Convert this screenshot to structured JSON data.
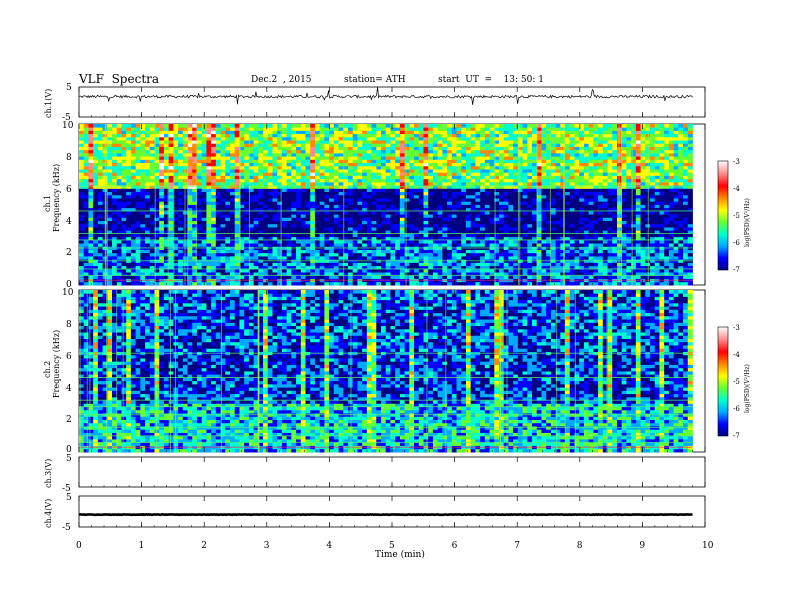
{
  "header": {
    "title": "VLF  Spectra",
    "date": "Dec.2  , 2015",
    "station": "station= ATH",
    "start": "start  UT  =    13: 50: 1"
  },
  "chart_data": [
    {
      "type": "line",
      "panel": "ch1-waveform",
      "ylabel": "ch.1(V)",
      "ylim": [
        -5,
        5
      ],
      "yticks": [
        "5",
        "-5"
      ],
      "baseline_value": 1.8
    },
    {
      "type": "heatmap",
      "panel": "ch1-spectrogram",
      "ylabel_line1": "ch.1",
      "ylabel_line2": "Frequency  (kHz)",
      "ylim": [
        0,
        10
      ],
      "yticks": [
        "10",
        "8",
        "6",
        "4",
        "2",
        "0"
      ],
      "colorbar": {
        "label": "log(PSD)(V²/Hz)",
        "range": [
          -7,
          -3
        ],
        "ticks": [
          "-3",
          "-4",
          "-5",
          "-6",
          "-7"
        ],
        "colors": [
          "#000080",
          "#0000ff",
          "#00aaff",
          "#00ffcc",
          "#66ff33",
          "#ffff00",
          "#ff8800",
          "#ff0000",
          "#ff8888",
          "#ffffff"
        ]
      },
      "data_end_min": 9.8,
      "levels": {
        "above_6kHz": -5.2,
        "between_3_and_6kHz": -6.8,
        "below_3kHz": -6.2
      }
    },
    {
      "type": "heatmap",
      "panel": "ch2-spectrogram",
      "ylabel_line1": "ch.2",
      "ylabel_line2": "Frequency  (kHz)",
      "ylim": [
        0,
        10
      ],
      "yticks": [
        "10",
        "8",
        "6",
        "4",
        "2",
        "0"
      ],
      "colorbar": {
        "label": "log(PSD)(V²/Hz)",
        "range": [
          -7,
          -3
        ],
        "ticks": [
          "-3",
          "-4",
          "-5",
          "-6",
          "-7"
        ],
        "colors": [
          "#000080",
          "#0000ff",
          "#00aaff",
          "#00ffcc",
          "#66ff33",
          "#ffff00",
          "#ff8800",
          "#ff0000",
          "#ff8888",
          "#ffffff"
        ]
      },
      "data_end_min": 9.8,
      "levels": {
        "above_6kHz": -6.3,
        "between_3_and_6kHz": -6.4,
        "below_3kHz": -5.8
      }
    },
    {
      "type": "line",
      "panel": "ch3-waveform",
      "ylabel": "ch.3(V)",
      "ylim": [
        -5,
        5
      ],
      "yticks": [
        "5",
        "-5"
      ],
      "baseline_value": null
    },
    {
      "type": "line",
      "panel": "ch4-waveform",
      "ylabel": "ch.4(V)",
      "ylim": [
        -5,
        5
      ],
      "yticks": [
        "5",
        "-5"
      ],
      "baseline_value": -1.0
    },
    {
      "type": "axis",
      "panel": "time-axis",
      "xlabel": "Time  (min)",
      "xlim": [
        0,
        10
      ],
      "xticks": [
        "0",
        "1",
        "2",
        "3",
        "4",
        "5",
        "6",
        "7",
        "8",
        "9",
        "10"
      ]
    }
  ]
}
